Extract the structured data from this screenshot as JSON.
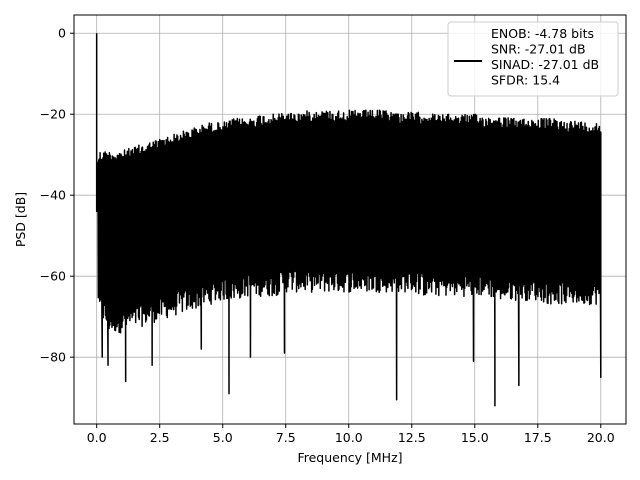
{
  "chart_data": {
    "type": "line",
    "title": "",
    "xlabel": "Frequency [MHz]",
    "ylabel": "PSD [dB]",
    "xlim": [
      -0.9,
      21.0
    ],
    "ylim": [
      -96.5,
      4.5
    ],
    "x_ticks": [
      0.0,
      2.5,
      5.0,
      7.5,
      10.0,
      12.5,
      15.0,
      17.5,
      20.0
    ],
    "x_tick_labels": [
      "0.0",
      "2.5",
      "5.0",
      "7.5",
      "10.0",
      "12.5",
      "15.0",
      "17.5",
      "20.0"
    ],
    "y_ticks": [
      0,
      -20,
      -40,
      -60,
      -80
    ],
    "y_tick_labels": [
      "0",
      "−20",
      "−40",
      "−60",
      "−80"
    ],
    "grid": true,
    "legend_position": "top-right",
    "series": [
      {
        "name": "ENOB: -4.78 bits\nSNR: -27.01 dB\nSINAD: -27.01 dB\nSFDR: 15.4",
        "color": "#000000",
        "envelope": {
          "x": [
            0.0,
            0.05,
            0.1,
            0.5,
            1.0,
            1.5,
            2.0,
            2.5,
            3.0,
            3.5,
            4.0,
            4.5,
            5.0,
            5.5,
            6.0,
            6.5,
            7.0,
            7.5,
            8.0,
            8.5,
            9.0,
            9.5,
            10.0,
            10.5,
            11.0,
            11.5,
            12.0,
            12.5,
            13.0,
            13.5,
            14.0,
            14.5,
            15.0,
            15.5,
            16.0,
            16.5,
            17.0,
            17.5,
            18.0,
            18.5,
            19.0,
            19.5,
            20.0
          ],
          "upper": [
            0,
            -30,
            -29,
            -29,
            -29,
            -28,
            -27,
            -26,
            -25,
            -24,
            -23,
            -22,
            -22,
            -21,
            -21,
            -20,
            -20,
            -19.5,
            -19.5,
            -19,
            -19,
            -19,
            -19,
            -19,
            -19,
            -19,
            -19.5,
            -19.5,
            -19.5,
            -20,
            -20,
            -20,
            -20,
            -20.5,
            -20.5,
            -21,
            -21,
            -21,
            -21,
            -21.5,
            -21.5,
            -22,
            -22
          ],
          "lower": [
            -44,
            -66,
            -70,
            -74,
            -74,
            -73,
            -72,
            -71,
            -70,
            -69,
            -68,
            -67,
            -66,
            -66,
            -65,
            -65,
            -65,
            -64,
            -64,
            -64,
            -64,
            -64,
            -64,
            -64,
            -64,
            -64,
            -64,
            -64,
            -65,
            -65,
            -65,
            -65,
            -65,
            -65,
            -66,
            -66,
            -66,
            -66,
            -67,
            -67,
            -67,
            -67,
            -67
          ]
        },
        "spikes": [
          {
            "x": 0.0,
            "y": 0
          },
          {
            "x": 0.22,
            "y": -80
          },
          {
            "x": 0.45,
            "y": -82
          },
          {
            "x": 1.15,
            "y": -86
          },
          {
            "x": 2.2,
            "y": -82
          },
          {
            "x": 4.15,
            "y": -78
          },
          {
            "x": 5.25,
            "y": -89
          },
          {
            "x": 6.1,
            "y": -80
          },
          {
            "x": 7.45,
            "y": -79
          },
          {
            "x": 11.9,
            "y": -90.5
          },
          {
            "x": 14.95,
            "y": -81
          },
          {
            "x": 15.8,
            "y": -92
          },
          {
            "x": 16.75,
            "y": -87
          },
          {
            "x": 20.0,
            "y": -85
          }
        ]
      }
    ]
  }
}
